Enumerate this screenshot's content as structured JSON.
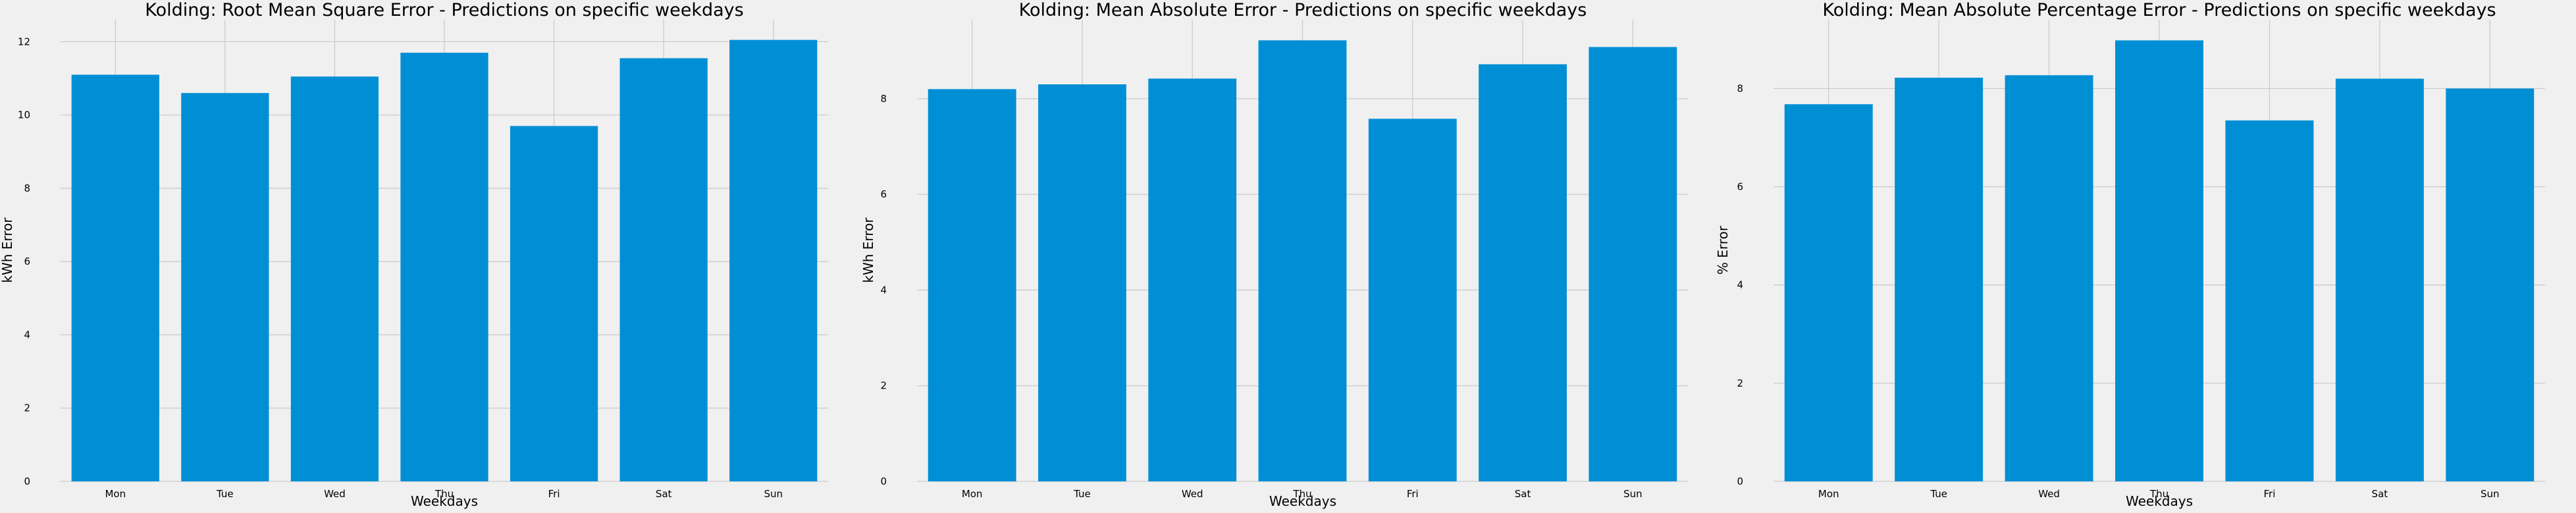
{
  "chart_data": [
    {
      "type": "bar",
      "title": "Kolding: Root Mean Square Error - Predictions on specific weekdays",
      "xlabel": "Weekdays",
      "ylabel": "kWh Error",
      "categories": [
        "Mon",
        "Tue",
        "Wed",
        "Thu",
        "Fri",
        "Sat",
        "Sun"
      ],
      "values": [
        11.1,
        10.6,
        11.05,
        11.7,
        9.7,
        11.55,
        12.05
      ],
      "ylim": [
        0,
        12.6
      ],
      "yticks": [
        0,
        2,
        4,
        6,
        8,
        10,
        12
      ],
      "grid": true,
      "bar_color": "#008fd5"
    },
    {
      "type": "bar",
      "title": "Kolding: Mean Absolute Error - Predictions on specific weekdays",
      "xlabel": "Weekdays",
      "ylabel": "kWh Error",
      "categories": [
        "Mon",
        "Tue",
        "Wed",
        "Thu",
        "Fri",
        "Sat",
        "Sun"
      ],
      "values": [
        8.2,
        8.3,
        8.42,
        9.22,
        7.58,
        8.72,
        9.08
      ],
      "ylim": [
        0,
        9.65
      ],
      "yticks": [
        0,
        2,
        4,
        6,
        8
      ],
      "grid": true,
      "bar_color": "#008fd5"
    },
    {
      "type": "bar",
      "title": "Kolding: Mean Absolute Percentage Error - Predictions on specific weekdays",
      "xlabel": "Weekdays",
      "ylabel": "% Error",
      "categories": [
        "Mon",
        "Tue",
        "Wed",
        "Thu",
        "Fri",
        "Sat",
        "Sun"
      ],
      "values": [
        7.68,
        8.22,
        8.27,
        8.98,
        7.35,
        8.2,
        8.0
      ],
      "ylim": [
        0,
        9.4
      ],
      "yticks": [
        0,
        2,
        4,
        6,
        8
      ],
      "grid": true,
      "bar_color": "#008fd5"
    }
  ]
}
